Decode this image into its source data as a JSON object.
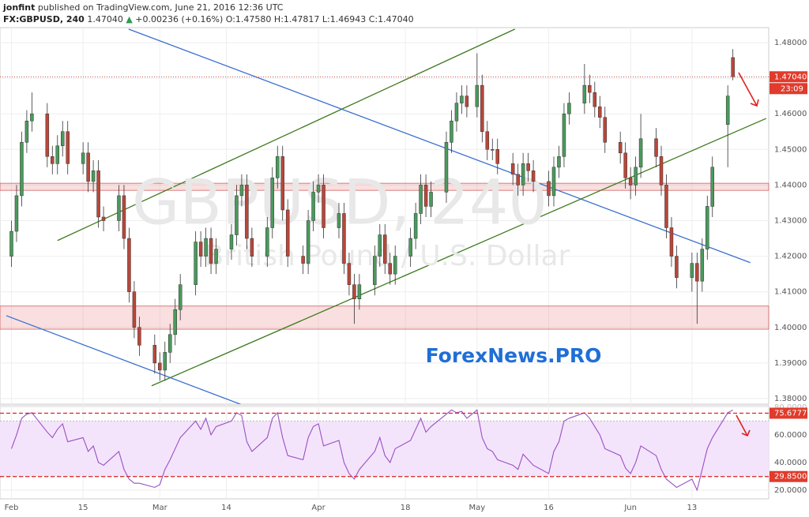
{
  "header": {
    "author": "jonfint",
    "published": "published on TradingView.com, June 21, 2016 12:36 UTC",
    "symbol": "FX:GBPUSD, 240",
    "price": "1.47040",
    "change": "+0.00236 (+0.16%)",
    "open": "O:1.47580",
    "high": "H:1.47817",
    "low": "L:1.46943",
    "close": "C:1.47040"
  },
  "chart_data": [
    {
      "type": "candlestick",
      "watermark": "GBPUSD, 240",
      "watermark_subtitle": "British Pound / U.S. Dollar",
      "annotation": "ForexNews.PRO",
      "up_color": "#4a9a5c",
      "down_color": "#b8473a",
      "grid": true,
      "xlim": [
        -2.235,
        148
      ],
      "ylim": [
        1.37845,
        1.48421
      ],
      "xticks": [
        {
          "value": 0,
          "label": "Feb"
        },
        {
          "value": 14,
          "label": "15"
        },
        {
          "value": 29,
          "label": "Mar"
        },
        {
          "value": 42,
          "label": "14"
        },
        {
          "value": 60,
          "label": "Apr"
        },
        {
          "value": 77,
          "label": "18"
        },
        {
          "value": 91,
          "label": "May"
        },
        {
          "value": 105,
          "label": "16"
        },
        {
          "value": 121,
          "label": "Jun"
        },
        {
          "value": 133,
          "label": "13"
        }
      ],
      "yticks": [
        {
          "value": 1.38,
          "label": "1.38000"
        },
        {
          "value": 1.39,
          "label": "1.39000"
        },
        {
          "value": 1.4,
          "label": "1.40000"
        },
        {
          "value": 1.41,
          "label": "1.41000"
        },
        {
          "value": 1.42,
          "label": "1.42000"
        },
        {
          "value": 1.43,
          "label": "1.43000"
        },
        {
          "value": 1.44,
          "label": "1.44000"
        },
        {
          "value": 1.45,
          "label": "1.45000"
        },
        {
          "value": 1.46,
          "label": "1.46000"
        },
        {
          "value": 1.47,
          "label": "1.47000"
        },
        {
          "value": 1.48,
          "label": "1.48000"
        }
      ],
      "last": {
        "value": 1.4704,
        "label": "1.47040"
      },
      "countdown": "23:09",
      "zones": [
        [
          1.4385,
          1.4405
        ],
        [
          1.3995,
          1.406
        ]
      ],
      "trendlines": [
        {
          "color": "#3a6fd0",
          "x1": 22.9,
          "y1": 1.4838,
          "x2": 144.4,
          "y2": 1.4182
        },
        {
          "color": "#3e7a1e",
          "x1": 9.0,
          "y1": 1.4244,
          "x2": 98.4,
          "y2": 1.4838
        },
        {
          "color": "#3e7a1e",
          "x1": 27.4,
          "y1": 1.3836,
          "x2": 147.5,
          "y2": 1.4587
        },
        {
          "color": "#3a6fd0",
          "x1": -1,
          "y1": 1.4033,
          "x2": 44.8,
          "y2": 1.3784
        }
      ],
      "x": [
        0,
        1,
        2,
        3,
        4,
        7,
        8,
        9,
        10,
        11,
        14,
        15,
        16,
        17,
        18,
        21,
        22,
        23,
        24,
        25,
        28,
        29,
        30,
        31,
        32,
        33,
        36,
        37,
        38,
        39,
        40,
        43,
        44,
        45,
        46,
        47,
        50,
        51,
        52,
        53,
        54,
        57,
        58,
        59,
        60,
        61,
        64,
        65,
        66,
        67,
        68,
        71,
        72,
        73,
        74,
        75,
        78,
        79,
        80,
        81,
        82,
        85,
        86,
        87,
        88,
        89,
        91,
        92,
        93,
        94,
        95,
        98,
        99,
        100,
        101,
        102,
        105,
        106,
        107,
        108,
        109,
        112,
        113,
        114,
        115,
        116,
        119,
        120,
        121,
        122,
        123,
        126,
        127,
        128,
        129,
        130,
        133,
        134,
        135,
        136,
        137,
        140,
        141
      ],
      "open": [
        1.42,
        1.427,
        1.437,
        1.452,
        1.458,
        1.46,
        1.448,
        1.446,
        1.451,
        1.455,
        1.446,
        1.449,
        1.441,
        1.444,
        1.431,
        1.43,
        1.437,
        1.425,
        1.41,
        1.4,
        1.395,
        1.39,
        1.388,
        1.393,
        1.398,
        1.405,
        1.412,
        1.424,
        1.42,
        1.425,
        1.418,
        1.422,
        1.426,
        1.437,
        1.44,
        1.425,
        1.42,
        1.428,
        1.442,
        1.448,
        1.433,
        1.42,
        1.418,
        1.43,
        1.438,
        1.44,
        1.428,
        1.432,
        1.418,
        1.412,
        1.408,
        1.412,
        1.42,
        1.426,
        1.418,
        1.415,
        1.42,
        1.425,
        1.432,
        1.44,
        1.434,
        1.438,
        1.452,
        1.458,
        1.463,
        1.465,
        1.462,
        1.468,
        1.455,
        1.45,
        1.45,
        1.446,
        1.443,
        1.44,
        1.446,
        1.444,
        1.441,
        1.437,
        1.445,
        1.448,
        1.46,
        1.463,
        1.468,
        1.466,
        1.462,
        1.459,
        1.452,
        1.449,
        1.442,
        1.44,
        1.445,
        1.453,
        1.448,
        1.44,
        1.428,
        1.42,
        1.414,
        1.418,
        1.413,
        1.422,
        1.434,
        1.457,
        1.4758
      ],
      "high": [
        1.43,
        1.44,
        1.455,
        1.461,
        1.466,
        1.463,
        1.451,
        1.454,
        1.458,
        1.458,
        1.452,
        1.452,
        1.447,
        1.447,
        1.434,
        1.44,
        1.44,
        1.428,
        1.413,
        1.403,
        1.398,
        1.393,
        1.396,
        1.401,
        1.408,
        1.415,
        1.427,
        1.427,
        1.428,
        1.428,
        1.425,
        1.429,
        1.44,
        1.443,
        1.443,
        1.428,
        1.431,
        1.445,
        1.451,
        1.451,
        1.436,
        1.423,
        1.433,
        1.441,
        1.443,
        1.443,
        1.435,
        1.435,
        1.421,
        1.415,
        1.415,
        1.423,
        1.429,
        1.429,
        1.421,
        1.423,
        1.428,
        1.435,
        1.443,
        1.443,
        1.441,
        1.455,
        1.461,
        1.466,
        1.468,
        1.468,
        1.477,
        1.471,
        1.458,
        1.453,
        1.453,
        1.449,
        1.446,
        1.449,
        1.449,
        1.447,
        1.444,
        1.448,
        1.451,
        1.463,
        1.466,
        1.474,
        1.471,
        1.469,
        1.465,
        1.462,
        1.455,
        1.452,
        1.445,
        1.448,
        1.46,
        1.456,
        1.451,
        1.443,
        1.431,
        1.423,
        1.421,
        1.421,
        1.425,
        1.437,
        1.448,
        1.468,
        1.47817
      ],
      "low": [
        1.417,
        1.424,
        1.434,
        1.449,
        1.455,
        1.445,
        1.443,
        1.443,
        1.448,
        1.443,
        1.443,
        1.438,
        1.438,
        1.428,
        1.427,
        1.427,
        1.422,
        1.407,
        1.397,
        1.392,
        1.387,
        1.385,
        1.385,
        1.39,
        1.395,
        1.402,
        1.409,
        1.417,
        1.417,
        1.415,
        1.415,
        1.419,
        1.423,
        1.434,
        1.422,
        1.417,
        1.417,
        1.425,
        1.439,
        1.43,
        1.417,
        1.415,
        1.415,
        1.427,
        1.435,
        1.425,
        1.425,
        1.415,
        1.409,
        1.401,
        1.405,
        1.409,
        1.417,
        1.415,
        1.412,
        1.412,
        1.417,
        1.422,
        1.429,
        1.431,
        1.431,
        1.435,
        1.449,
        1.455,
        1.46,
        1.459,
        1.459,
        1.452,
        1.447,
        1.447,
        1.443,
        1.44,
        1.437,
        1.437,
        1.441,
        1.438,
        1.434,
        1.434,
        1.442,
        1.445,
        1.457,
        1.46,
        1.463,
        1.459,
        1.456,
        1.449,
        1.446,
        1.439,
        1.436,
        1.437,
        1.442,
        1.445,
        1.437,
        1.425,
        1.417,
        1.411,
        1.41,
        1.401,
        1.41,
        1.419,
        1.431,
        1.445,
        1.46943
      ],
      "close": [
        1.427,
        1.437,
        1.452,
        1.458,
        1.46,
        1.448,
        1.446,
        1.451,
        1.455,
        1.446,
        1.449,
        1.441,
        1.444,
        1.431,
        1.43,
        1.437,
        1.425,
        1.41,
        1.4,
        1.395,
        1.39,
        1.388,
        1.393,
        1.398,
        1.405,
        1.412,
        1.424,
        1.42,
        1.425,
        1.418,
        1.422,
        1.426,
        1.437,
        1.44,
        1.425,
        1.42,
        1.428,
        1.442,
        1.448,
        1.433,
        1.42,
        1.418,
        1.43,
        1.438,
        1.44,
        1.428,
        1.432,
        1.418,
        1.412,
        1.408,
        1.412,
        1.42,
        1.426,
        1.418,
        1.415,
        1.42,
        1.425,
        1.432,
        1.44,
        1.434,
        1.438,
        1.452,
        1.458,
        1.463,
        1.465,
        1.462,
        1.468,
        1.455,
        1.45,
        1.45,
        1.446,
        1.443,
        1.44,
        1.446,
        1.444,
        1.441,
        1.437,
        1.445,
        1.448,
        1.46,
        1.463,
        1.468,
        1.466,
        1.462,
        1.459,
        1.452,
        1.449,
        1.442,
        1.44,
        1.445,
        1.453,
        1.448,
        1.44,
        1.428,
        1.42,
        1.414,
        1.418,
        1.413,
        1.422,
        1.434,
        1.445,
        1.465,
        1.4704
      ]
    },
    {
      "type": "line",
      "color": "#9b4fc4",
      "band": [
        30,
        70
      ],
      "band_color": "#f3e4fb",
      "xlim": [
        -2.235,
        148
      ],
      "ylim": [
        13.7,
        81.1
      ],
      "yticks": [
        {
          "value": 20,
          "label": "20.0000"
        },
        {
          "value": 40,
          "label": "40.0000"
        },
        {
          "value": 60,
          "label": "60.0000"
        },
        {
          "value": 80,
          "label": "80.0000"
        }
      ],
      "levels": [
        {
          "value": 75.6777,
          "label": "75.6777"
        },
        {
          "value": 29.85,
          "label": "29.8500"
        }
      ],
      "x": [
        0,
        1,
        2,
        3,
        4,
        7,
        8,
        9,
        10,
        11,
        14,
        15,
        16,
        17,
        18,
        21,
        22,
        23,
        24,
        25,
        28,
        29,
        30,
        31,
        32,
        33,
        36,
        37,
        38,
        39,
        40,
        43,
        44,
        45,
        46,
        47,
        50,
        51,
        52,
        53,
        54,
        57,
        58,
        59,
        60,
        61,
        64,
        65,
        66,
        67,
        68,
        71,
        72,
        73,
        74,
        75,
        78,
        79,
        80,
        81,
        82,
        85,
        86,
        87,
        88,
        89,
        91,
        92,
        93,
        94,
        95,
        98,
        99,
        100,
        101,
        102,
        105,
        106,
        107,
        108,
        109,
        112,
        113,
        114,
        115,
        116,
        119,
        120,
        121,
        122,
        123,
        126,
        127,
        128,
        129,
        130,
        133,
        134,
        135,
        136,
        137,
        140,
        141
      ],
      "values": [
        50,
        60,
        72,
        75,
        76,
        62,
        58,
        64,
        68,
        55,
        58,
        48,
        52,
        40,
        38,
        48,
        35,
        28,
        25,
        25,
        22,
        24,
        35,
        42,
        50,
        58,
        70,
        64,
        72,
        60,
        66,
        70,
        76,
        74,
        55,
        48,
        58,
        72,
        76,
        58,
        45,
        42,
        58,
        66,
        68,
        52,
        56,
        40,
        32,
        28,
        35,
        48,
        58,
        45,
        40,
        50,
        56,
        64,
        72,
        62,
        66,
        75,
        78,
        76,
        77,
        72,
        78,
        58,
        50,
        48,
        42,
        38,
        35,
        46,
        42,
        38,
        32,
        48,
        55,
        70,
        72,
        76,
        72,
        66,
        60,
        50,
        45,
        36,
        32,
        40,
        52,
        45,
        35,
        28,
        25,
        22,
        28,
        20,
        35,
        50,
        58,
        76,
        78
      ]
    }
  ]
}
